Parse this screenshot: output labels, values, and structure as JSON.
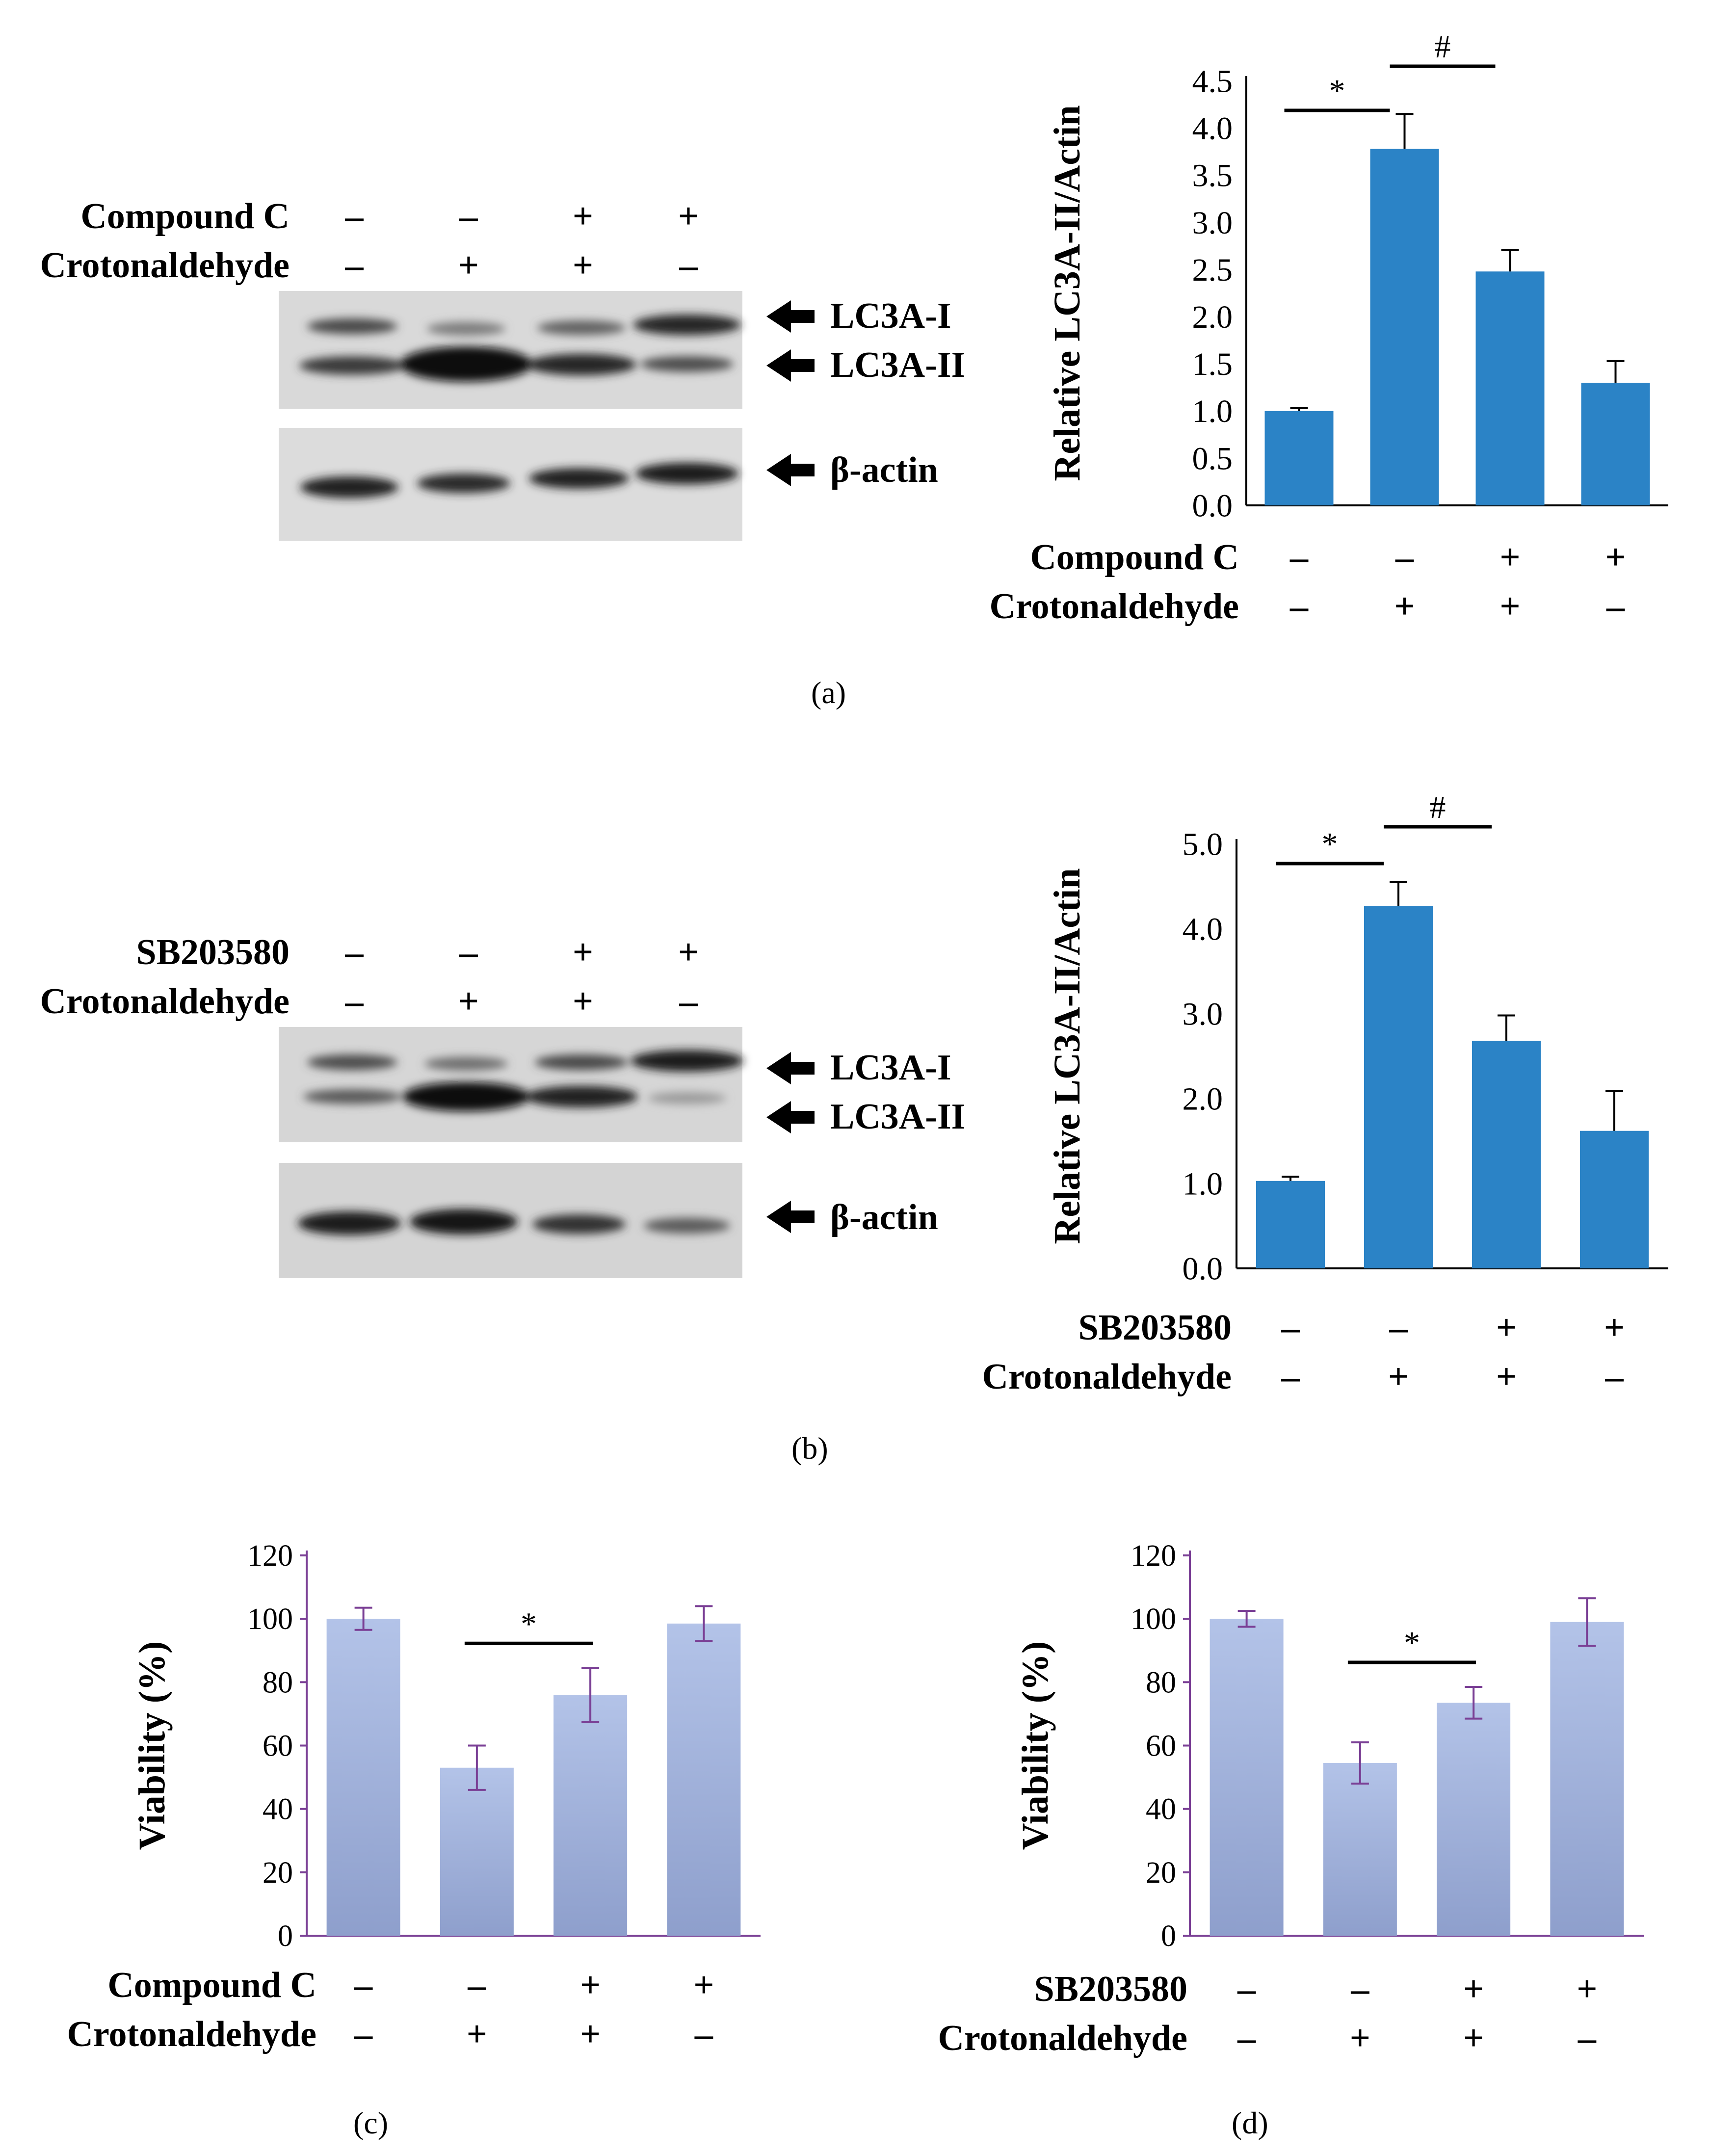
{
  "panels": {
    "a": "(a)",
    "b": "(b)",
    "c": "(c)",
    "d": "(d)"
  },
  "blot_a": {
    "treatments": [
      {
        "label": "Compound C",
        "signs": [
          "–",
          "–",
          "+",
          "+"
        ]
      },
      {
        "label": "Crotonaldehyde",
        "signs": [
          "–",
          "+",
          "+",
          "–"
        ]
      }
    ],
    "band_labels": [
      "LC3A-I",
      "LC3A-II",
      "β-actin"
    ]
  },
  "blot_b": {
    "treatments": [
      {
        "label": "SB203580",
        "signs": [
          "–",
          "–",
          "+",
          "+"
        ]
      },
      {
        "label": "Crotonaldehyde",
        "signs": [
          "–",
          "+",
          "+",
          "–"
        ]
      }
    ],
    "band_labels": [
      "LC3A-I",
      "LC3A-II",
      "β-actin"
    ]
  },
  "colors": {
    "bar_blue": "#2b83c6",
    "bar_lavender": "#9fb2dc",
    "axis_purple": "#7a3f95"
  },
  "chart_data": [
    {
      "id": "a",
      "type": "bar",
      "title": "",
      "ylabel": "Relative LC3A-II/Actin",
      "ylim": [
        0,
        4.5
      ],
      "yticks": [
        "0.0",
        "0.5",
        "1.0",
        "1.5",
        "2.0",
        "2.5",
        "3.0",
        "3.5",
        "4.0",
        "4.5"
      ],
      "values": [
        1.0,
        3.78,
        2.48,
        1.3
      ],
      "errors": [
        0.03,
        0.37,
        0.23,
        0.23
      ],
      "significance": [
        {
          "from": 0,
          "to": 1,
          "symbol": "*"
        },
        {
          "from": 1,
          "to": 2,
          "symbol": "#"
        }
      ],
      "treatments": [
        {
          "label": "Compound C",
          "signs": [
            "–",
            "–",
            "+",
            "+"
          ]
        },
        {
          "label": "Crotonaldehyde",
          "signs": [
            "–",
            "+",
            "+",
            "–"
          ]
        }
      ]
    },
    {
      "id": "b",
      "type": "bar",
      "title": "",
      "ylabel": "Relative LC3A-II/Actin",
      "ylim": [
        0,
        5.0
      ],
      "yticks": [
        "0.0",
        "1.0",
        "2.0",
        "3.0",
        "4.0",
        "5.0"
      ],
      "values": [
        1.03,
        4.27,
        2.68,
        1.62
      ],
      "errors": [
        0.05,
        0.28,
        0.3,
        0.47
      ],
      "significance": [
        {
          "from": 0,
          "to": 1,
          "symbol": "*"
        },
        {
          "from": 1,
          "to": 2,
          "symbol": "#"
        }
      ],
      "treatments": [
        {
          "label": "SB203580",
          "signs": [
            "–",
            "–",
            "+",
            "+"
          ]
        },
        {
          "label": "Crotonaldehyde",
          "signs": [
            "–",
            "+",
            "+",
            "–"
          ]
        }
      ]
    },
    {
      "id": "c",
      "type": "bar",
      "title": "",
      "ylabel": "Viability (%)",
      "ylim": [
        0,
        120
      ],
      "yticks": [
        "0",
        "20",
        "40",
        "60",
        "80",
        "100",
        "120"
      ],
      "values": [
        100,
        53,
        76,
        98.5
      ],
      "errors": [
        3.5,
        7,
        8.5,
        5.5
      ],
      "significance": [
        {
          "from": 1,
          "to": 2,
          "symbol": "*"
        }
      ],
      "treatments": [
        {
          "label": "Compound C",
          "signs": [
            "–",
            "–",
            "+",
            "+"
          ]
        },
        {
          "label": "Crotonaldehyde",
          "signs": [
            "–",
            "+",
            "+",
            "–"
          ]
        }
      ]
    },
    {
      "id": "d",
      "type": "bar",
      "title": "",
      "ylabel": "Viability (%)",
      "ylim": [
        0,
        120
      ],
      "yticks": [
        "0",
        "20",
        "40",
        "60",
        "80",
        "100",
        "120"
      ],
      "values": [
        100,
        54.5,
        73.5,
        99
      ],
      "errors": [
        2.5,
        6.5,
        5,
        7.5
      ],
      "significance": [
        {
          "from": 1,
          "to": 2,
          "symbol": "*"
        }
      ],
      "treatments": [
        {
          "label": "SB203580",
          "signs": [
            "–",
            "–",
            "+",
            "+"
          ]
        },
        {
          "label": "Crotonaldehyde",
          "signs": [
            "–",
            "+",
            "+",
            "–"
          ]
        }
      ]
    }
  ]
}
